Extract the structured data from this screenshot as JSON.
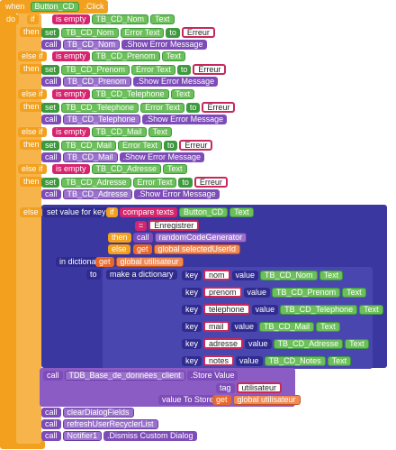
{
  "event": {
    "when": "when",
    "component": "Button_CD",
    "event": ".Click",
    "do": "do"
  },
  "branches": [
    {
      "if": "if",
      "op": "is empty",
      "component": "TB_CD_Nom",
      "property": "Text",
      "then": "then",
      "set": "set",
      "set_property": "Error Text",
      "to": "to",
      "message": "Erreur",
      "call": "call",
      "method": ".Show Error Message"
    },
    {
      "if": "else if",
      "op": "is empty",
      "component": "TB_CD_Prenom",
      "property": "Text",
      "then": "then",
      "set": "set",
      "set_property": "Error Text",
      "to": "to",
      "message": "Erreur",
      "call": "call",
      "method": ".Show Error Message"
    },
    {
      "if": "else if",
      "op": "is empty",
      "component": "TB_CD_Telephone",
      "property": "Text",
      "then": "then",
      "set": "set",
      "set_property": "Error Text",
      "to": "to",
      "message": "Erreur",
      "call": "call",
      "method": ".Show Error Message"
    },
    {
      "if": "else if",
      "op": "is empty",
      "component": "TB_CD_Mail",
      "property": "Text",
      "then": "then",
      "set": "set",
      "set_property": "Error Text",
      "to": "to",
      "message": "Erreur",
      "call": "call",
      "method": ".Show Error Message"
    },
    {
      "if": "else if",
      "op": "is empty",
      "component": "TB_CD_Adresse",
      "property": "Text",
      "then": "then",
      "set": "set",
      "set_property": "Error Text",
      "to": "to",
      "message": "Erreur",
      "call": "call",
      "method": ".Show Error Message"
    }
  ],
  "else_branch": {
    "else": "else",
    "set_value_for_key": "set value for key",
    "key_if": {
      "if": "if",
      "compare": "compare texts",
      "component": "Button_CD",
      "property": "Text",
      "operator": "=",
      "value": "Enregistrer",
      "then": "then",
      "call": "call",
      "procedure": "randomCodeGenerator",
      "else": "else",
      "get": "get",
      "variable": "global selectedUserId"
    },
    "in_dictionary": "in dictionary",
    "dict_get": "get",
    "dict_variable": "global utilisateur",
    "to": "to",
    "make": "make a dictionary",
    "pairs": [
      {
        "key": "key",
        "name": "nom",
        "value": "value",
        "component": "TB_CD_Nom",
        "property": "Text"
      },
      {
        "key": "key",
        "name": "prenom",
        "value": "value",
        "component": "TB_CD_Prenom",
        "property": "Text"
      },
      {
        "key": "key",
        "name": "telephone",
        "value": "value",
        "component": "TB_CD_Telephone",
        "property": "Text"
      },
      {
        "key": "key",
        "name": "mail",
        "value": "value",
        "component": "TB_CD_Mail",
        "property": "Text"
      },
      {
        "key": "key",
        "name": "adresse",
        "value": "value",
        "component": "TB_CD_Adresse",
        "property": "Text"
      },
      {
        "key": "key",
        "name": "notes",
        "value": "value",
        "component": "TB_CD_Notes",
        "property": "Text"
      }
    ],
    "store": {
      "call": "call",
      "component": "TDB_Base_de_données_client",
      "method": ".Store Value",
      "tag": "tag",
      "tag_value": "utilisateur",
      "value_to_store": "value To Store",
      "get": "get",
      "variable": "global utilisateur"
    },
    "calls": [
      {
        "call": "call",
        "procedure": "clearDialogFields"
      },
      {
        "call": "call",
        "procedure": "refreshUserRecyclerList"
      },
      {
        "call": "call",
        "component": "Notifier1",
        "method": ".Dismiss Custom Dialog"
      }
    ]
  }
}
